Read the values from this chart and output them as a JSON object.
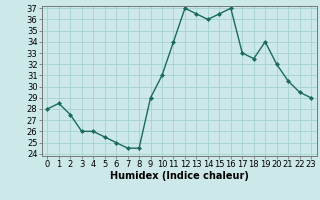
{
  "x": [
    0,
    1,
    2,
    3,
    4,
    5,
    6,
    7,
    8,
    9,
    10,
    11,
    12,
    13,
    14,
    15,
    16,
    17,
    18,
    19,
    20,
    21,
    22,
    23
  ],
  "y": [
    28,
    28.5,
    27.5,
    26,
    26,
    25.5,
    25,
    24.5,
    24.5,
    29,
    31,
    34,
    37,
    36.5,
    36,
    36.5,
    37,
    33,
    32.5,
    34,
    32,
    30.5,
    29.5,
    29
  ],
  "line_color": "#1a6b5a",
  "marker": "D",
  "marker_size": 2,
  "bg_color": "#cce8e8",
  "grid_color": "#aad4d4",
  "xlabel": "Humidex (Indice chaleur)",
  "ylim": [
    24,
    37
  ],
  "xlim": [
    -0.5,
    23.5
  ],
  "yticks": [
    24,
    25,
    26,
    27,
    28,
    29,
    30,
    31,
    32,
    33,
    34,
    35,
    36,
    37
  ],
  "xticks": [
    0,
    1,
    2,
    3,
    4,
    5,
    6,
    7,
    8,
    9,
    10,
    11,
    12,
    13,
    14,
    15,
    16,
    17,
    18,
    19,
    20,
    21,
    22,
    23
  ],
  "tick_fontsize": 6,
  "xlabel_fontsize": 7
}
